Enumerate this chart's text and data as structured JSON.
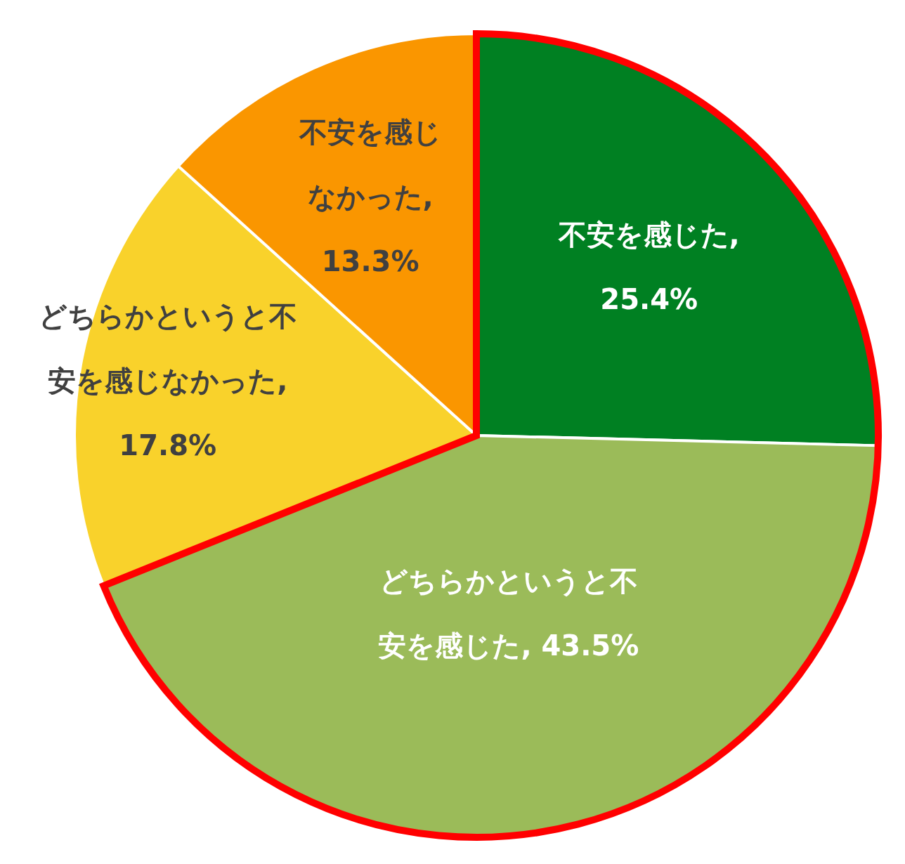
{
  "chart_data": {
    "type": "pie",
    "categories": [
      "不安を感じた",
      "どちらかというと不安を感じた",
      "どちらかというと不安を感じなかった",
      "不安を感じなかった"
    ],
    "values": [
      25.4,
      43.5,
      17.8,
      13.3
    ],
    "colors": [
      "#008022",
      "#9bbb59",
      "#f9d22b",
      "#fa9600"
    ],
    "value_labels": [
      ", 25.4%",
      ", 43.5%",
      ", 17.8%",
      ", 13.3%"
    ]
  }
}
